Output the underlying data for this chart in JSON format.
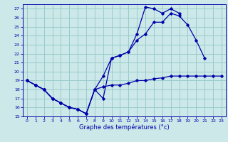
{
  "xlabel": "Graphe des températures (°c)",
  "bg_color": "#cce8e8",
  "line_color": "#0000aa",
  "grid_color": "#99cccc",
  "xmin": -0.5,
  "xmax": 23.5,
  "ymin": 15,
  "ymax": 27.5,
  "line1_x": [
    0,
    1,
    2,
    3,
    4,
    5,
    6,
    7,
    8,
    9,
    10,
    11,
    12,
    13,
    14,
    15,
    16,
    17,
    18,
    19,
    20,
    21,
    22,
    23
  ],
  "line1_y": [
    19.0,
    18.5,
    18.0,
    17.0,
    16.5,
    16.0,
    15.8,
    15.3,
    18.0,
    18.3,
    18.5,
    18.5,
    18.7,
    19.0,
    19.0,
    19.2,
    19.3,
    19.5,
    19.5,
    19.5,
    19.5,
    19.5,
    19.5,
    19.5
  ],
  "line2_x": [
    0,
    1,
    2,
    3,
    4,
    5,
    6,
    7,
    8,
    9,
    10,
    11,
    12,
    13,
    14,
    15,
    16,
    17,
    18,
    19,
    20,
    21,
    22,
    23
  ],
  "line2_y": [
    19.0,
    18.5,
    18.0,
    17.0,
    16.5,
    16.0,
    15.8,
    15.3,
    18.0,
    17.0,
    21.5,
    21.8,
    22.2,
    23.5,
    24.2,
    25.5,
    25.5,
    26.5,
    26.2,
    25.2,
    23.5,
    21.5,
    null,
    null
  ],
  "line3_x": [
    0,
    1,
    2,
    3,
    4,
    5,
    6,
    7,
    8,
    9,
    10,
    11,
    12,
    13,
    14,
    15,
    16,
    17,
    18,
    19,
    20,
    21,
    22,
    23
  ],
  "line3_y": [
    19.0,
    18.5,
    18.0,
    17.0,
    16.5,
    16.0,
    15.8,
    15.3,
    18.0,
    19.5,
    21.5,
    21.8,
    22.2,
    24.2,
    27.2,
    27.0,
    26.5,
    27.0,
    26.5,
    null,
    null,
    null,
    null,
    null
  ],
  "yticks": [
    15,
    16,
    17,
    18,
    19,
    20,
    21,
    22,
    23,
    24,
    25,
    26,
    27
  ],
  "xticks": [
    0,
    1,
    2,
    3,
    4,
    5,
    6,
    7,
    8,
    9,
    10,
    11,
    12,
    13,
    14,
    15,
    16,
    17,
    18,
    19,
    20,
    21,
    22,
    23
  ]
}
